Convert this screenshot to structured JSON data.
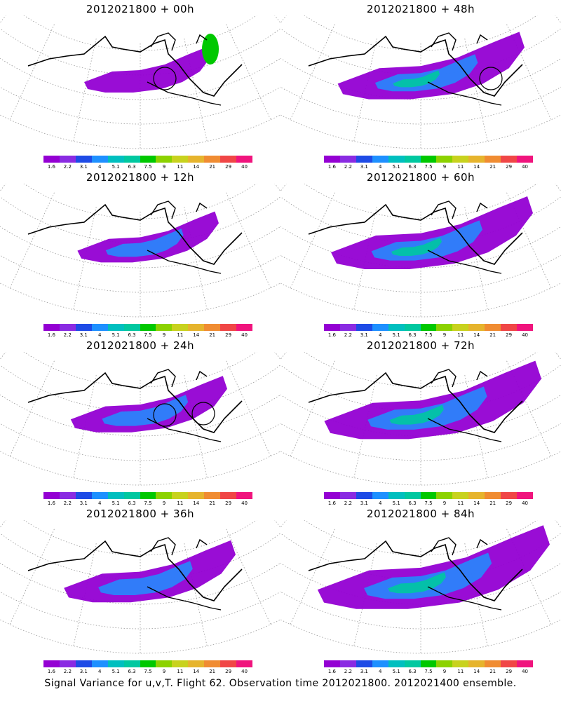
{
  "palette": [
    "#9400D3",
    "#8A2BE2",
    "#1E4BE6",
    "#1E90FF",
    "#00BFBF",
    "#00C8A0",
    "#00C800",
    "#8CD200",
    "#C8D21E",
    "#E6B42D",
    "#F08C32",
    "#F04646",
    "#F0147D"
  ],
  "colorbar_labels": [
    "1.6",
    "2.2",
    "3.1",
    "4",
    "5.1",
    "6.3",
    "7.5",
    "9",
    "11",
    "14",
    "21",
    "29",
    "40"
  ],
  "panels": [
    {
      "title": "2012021800 + 00h",
      "intensity": 0
    },
    {
      "title": "2012021800 + 48h",
      "intensity": 4
    },
    {
      "title": "2012021800 + 12h",
      "intensity": 1
    },
    {
      "title": "2012021800 + 60h",
      "intensity": 5
    },
    {
      "title": "2012021800 + 24h",
      "intensity": 2
    },
    {
      "title": "2012021800 + 72h",
      "intensity": 6
    },
    {
      "title": "2012021800 + 36h",
      "intensity": 3
    },
    {
      "title": "2012021800 + 84h",
      "intensity": 7
    }
  ],
  "footer": "Signal Variance for u,v,T. Flight 62. Observation time 2012021800. 2012021400 ensemble."
}
